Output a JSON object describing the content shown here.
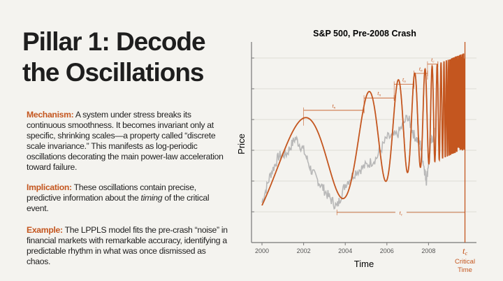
{
  "slide": {
    "title": "Pillar 1: Decode the Oscillations",
    "paragraphs": [
      {
        "lead": "Mechanism:",
        "text": " A system under stress breaks its continuous smoothness. It becomes invariant only at specific, shrinking scales—a property called “discrete scale invariance.” This manifests as log-periodic oscillations decorating the main power-law acceleration toward failure."
      },
      {
        "lead": "Implication:",
        "pre": " These oscillations contain precise, predictive information about the ",
        "em": "timing",
        "post": " of the critical event."
      },
      {
        "lead": "Example:",
        "text": " The LPPLS model fits the pre-crash “noise” in financial markets with remarkable accuracy, identifying a predictable rhythm in what was once dismissed as chaos."
      }
    ]
  },
  "colors": {
    "accent": "#c4561f",
    "price": "#b8b8b8",
    "grid": "#dedcd6",
    "text": "#1e1e1e"
  },
  "chart_data": {
    "type": "line",
    "title": "S&P 500, Pre-2008 Crash",
    "xlabel": "Time",
    "ylabel": "Price",
    "xlim": [
      1999.5,
      2010.3
    ],
    "ylim": [
      0,
      6.6
    ],
    "xticks": [
      "2000",
      "2002",
      "2004",
      "2006",
      "2008"
    ],
    "tc": {
      "year": 2009.75,
      "label": "t",
      "sub": "c",
      "caption": "Critical Time"
    },
    "grid": "horizontal",
    "series": [
      {
        "kind": "sp500-price",
        "x": [
          2000,
          2000.4,
          2000.8,
          2001.2,
          2001.6,
          2002,
          2002.4,
          2002.8,
          2003.2,
          2003.6,
          2004,
          2004.5,
          2005,
          2005.5,
          2006,
          2006.5,
          2007,
          2007.3,
          2007.6,
          2007.8,
          2007.9,
          2008.1,
          2008.3
        ],
        "y": [
          1.3,
          2.2,
          2.8,
          2.9,
          3.4,
          3.0,
          2.3,
          1.9,
          1.5,
          1.15,
          1.9,
          2.3,
          2.5,
          2.75,
          3.4,
          3.5,
          4.1,
          3.5,
          3.2,
          2.4,
          2.0,
          3.2,
          3.6
        ]
      },
      {
        "kind": "lppl-fit",
        "tc": 2009.75,
        "center_start": 1.93,
        "center_end": 4.6,
        "amplitude": 1.57
      }
    ],
    "intervals": [
      {
        "from": 2002.0,
        "to": 2004.9,
        "level": 4.3,
        "label": "t",
        "sub": "n"
      },
      {
        "from": 2004.9,
        "to": 2006.35,
        "level": 4.7,
        "label": "t",
        "sub": "n"
      },
      {
        "from": 2006.35,
        "to": 2007.3,
        "level": 5.15,
        "label": "t",
        "sub": "n"
      },
      {
        "from": 2007.3,
        "to": 2007.95,
        "level": 5.5,
        "label": "t",
        "sub": "n"
      },
      {
        "from": 2007.95,
        "to": 2008.45,
        "level": 5.8,
        "label": "t",
        "sub": "c"
      },
      {
        "from": 2003.6,
        "to": 2009.75,
        "level": 0.98,
        "label": "t",
        "sub": "c"
      }
    ]
  }
}
